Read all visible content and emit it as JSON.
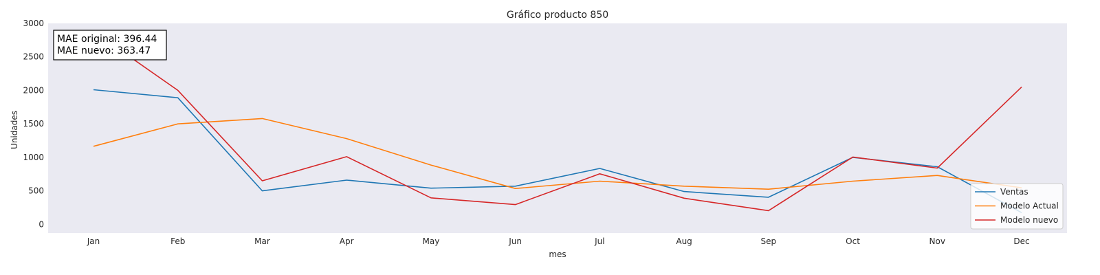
{
  "chart_data": {
    "type": "line",
    "title": "Gráfico producto 850",
    "xlabel": "mes",
    "ylabel": "Unidades",
    "categories": [
      "Jan",
      "Feb",
      "Mar",
      "Apr",
      "May",
      "Jun",
      "Jul",
      "Aug",
      "Sep",
      "Oct",
      "Nov",
      "Dec"
    ],
    "ylim": [
      -130,
      3000
    ],
    "yticks": [
      0,
      500,
      1000,
      1500,
      2000,
      2500,
      3000
    ],
    "grid": false,
    "background": "#eaeaf2",
    "legend_position": "bottom-right",
    "annotation": {
      "line1": "MAE original: 396.44",
      "line2": "MAE nuevo: 363.47"
    },
    "series": [
      {
        "name": "Ventas",
        "color": "#1f77b4",
        "values": [
          2010,
          1890,
          500,
          660,
          540,
          570,
          835,
          490,
          405,
          1000,
          860,
          175
        ]
      },
      {
        "name": "Modelo Actual",
        "color": "#ff7f0e",
        "values": [
          1165,
          1500,
          1580,
          1280,
          885,
          535,
          645,
          570,
          525,
          645,
          730,
          545
        ]
      },
      {
        "name": "Modelo nuevo",
        "color": "#d62728",
        "values": [
          2880,
          2000,
          650,
          1010,
          395,
          295,
          755,
          390,
          205,
          1005,
          840,
          2050
        ]
      }
    ]
  }
}
